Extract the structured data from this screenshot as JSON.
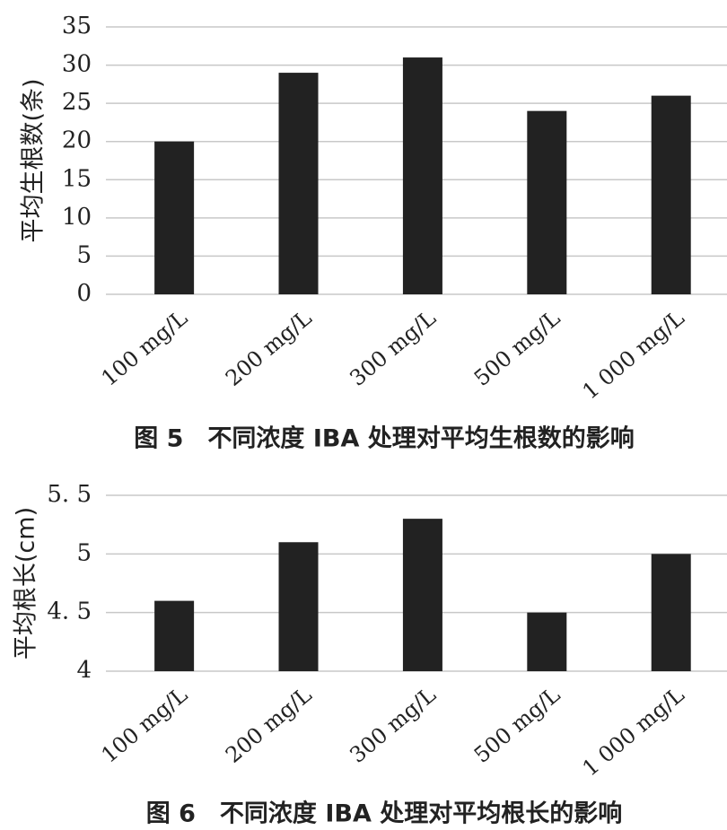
{
  "chart_data": [
    {
      "type": "bar",
      "caption": "图 5　不同浓度 IBA 处理对平均生根数的影响",
      "y_label": "平均生根数(条)",
      "categories": [
        "100 mg/L",
        "200 mg/L",
        "300 mg/L",
        "500 mg/L",
        "1 000 mg/L"
      ],
      "values": [
        20,
        29,
        31,
        24,
        26
      ],
      "color": "#222222",
      "ylim": [
        0,
        35
      ],
      "yticks": [
        0,
        5,
        10,
        15,
        20,
        25,
        30,
        35
      ],
      "grid": true
    },
    {
      "type": "bar",
      "caption": "图 6　不同浓度 IBA 处理对平均根长的影响",
      "y_label": "平均根长(cm)",
      "categories": [
        "100 mg/L",
        "200 mg/L",
        "300 mg/L",
        "500 mg/L",
        "1 000 mg/L"
      ],
      "values": [
        4.6,
        5.1,
        5.3,
        4.5,
        5.0
      ],
      "color": "#222222",
      "ylim": [
        4,
        5.5
      ],
      "yticks": [
        4,
        {
          "value": 4.5,
          "label": "4. 5"
        },
        5,
        {
          "value": 5.5,
          "label": "5. 5"
        }
      ],
      "grid": true
    }
  ]
}
